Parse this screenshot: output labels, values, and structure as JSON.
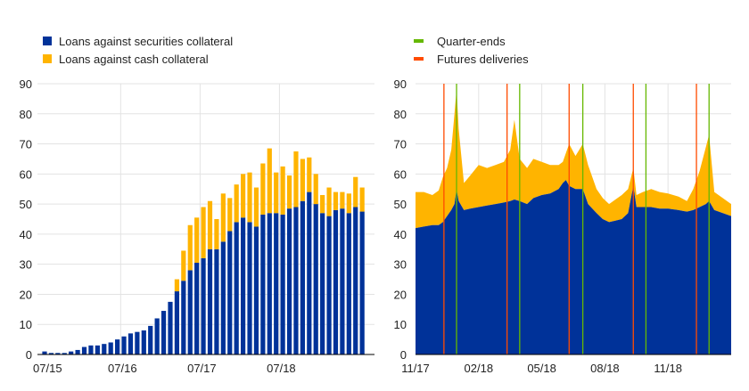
{
  "chart_data": [
    {
      "type": "bar",
      "stacked": true,
      "legend": [
        {
          "label": "Loans against securities collateral",
          "color": "#003299"
        },
        {
          "label": "Loans against cash collateral",
          "color": "#ffb400"
        }
      ],
      "ylim": [
        0,
        90
      ],
      "yticks": [
        "0",
        "10",
        "20",
        "30",
        "40",
        "50",
        "60",
        "70",
        "80",
        "90"
      ],
      "xticks": [
        {
          "label": "07/15",
          "index": 0
        },
        {
          "label": "07/16",
          "index": 12
        },
        {
          "label": "07/17",
          "index": 24
        },
        {
          "label": "07/18",
          "index": 36
        }
      ],
      "grid": true,
      "series": [
        {
          "name": "Loans against securities collateral",
          "color": "#003299",
          "values": [
            1,
            0.5,
            0.5,
            0.5,
            1,
            1.5,
            2.5,
            3,
            3,
            3.5,
            4,
            5,
            6,
            7,
            7.5,
            8,
            9.5,
            12,
            14.5,
            17.5,
            21,
            24.5,
            28,
            30.5,
            32,
            35,
            35,
            37.5,
            41,
            44,
            45.5,
            44,
            42.5,
            46.5,
            47,
            47,
            46.5,
            48.5,
            49,
            51,
            54,
            50,
            47,
            46,
            48,
            48.5,
            47,
            49,
            47.5
          ]
        },
        {
          "name": "Loans against cash collateral",
          "color": "#ffb400",
          "values": [
            0,
            0,
            0,
            0,
            0,
            0,
            0,
            0,
            0,
            0,
            0,
            0,
            0,
            0,
            0,
            0,
            0,
            0,
            0,
            0,
            4,
            10,
            15,
            15,
            17,
            16,
            10,
            16,
            11,
            12.5,
            14.5,
            16.5,
            13,
            17,
            21.5,
            13.5,
            16,
            11,
            18.5,
            14,
            11.5,
            10,
            6,
            9.5,
            6,
            5.5,
            6.5,
            10,
            8
          ]
        }
      ]
    },
    {
      "type": "area",
      "stacked": true,
      "legend": [
        {
          "label": "Quarter-ends",
          "color": "#65b800"
        },
        {
          "label": "Futures deliveries",
          "color": "#ff4b00"
        }
      ],
      "ylim": [
        0,
        90
      ],
      "yticks": [
        "0",
        "10",
        "20",
        "30",
        "40",
        "50",
        "60",
        "70",
        "80",
        "90"
      ],
      "xlim": [
        0,
        15
      ],
      "xticks": [
        {
          "label": "11/17",
          "x": 0
        },
        {
          "label": "02/18",
          "x": 3
        },
        {
          "label": "05/18",
          "x": 6
        },
        {
          "label": "08/18",
          "x": 9
        },
        {
          "label": "11/18",
          "x": 12
        }
      ],
      "grid": true,
      "quarter_ends": [
        1.95,
        4.95,
        7.95,
        10.95,
        13.95
      ],
      "futures_deliveries": [
        1.35,
        4.35,
        7.3,
        10.35,
        13.35
      ],
      "series": [
        {
          "name": "Loans against securities collateral",
          "color": "#003299",
          "points": [
            [
              0,
              42
            ],
            [
              0.4,
              42.5
            ],
            [
              0.8,
              43
            ],
            [
              1.1,
              43
            ],
            [
              1.3,
              44
            ],
            [
              1.5,
              46
            ],
            [
              1.7,
              48
            ],
            [
              1.85,
              50
            ],
            [
              1.95,
              55
            ],
            [
              2.05,
              51
            ],
            [
              2.3,
              48
            ],
            [
              2.6,
              48.5
            ],
            [
              3,
              49
            ],
            [
              3.4,
              49.5
            ],
            [
              3.8,
              50
            ],
            [
              4.2,
              50.5
            ],
            [
              4.5,
              51
            ],
            [
              4.7,
              51.5
            ],
            [
              4.95,
              51
            ],
            [
              5.3,
              50
            ],
            [
              5.6,
              52
            ],
            [
              6,
              53
            ],
            [
              6.4,
              53.5
            ],
            [
              6.8,
              55
            ],
            [
              7,
              57
            ],
            [
              7.15,
              58
            ],
            [
              7.3,
              56
            ],
            [
              7.6,
              55
            ],
            [
              7.95,
              55
            ],
            [
              8.2,
              50
            ],
            [
              8.6,
              47
            ],
            [
              8.9,
              45
            ],
            [
              9.2,
              44
            ],
            [
              9.5,
              44.5
            ],
            [
              9.8,
              45
            ],
            [
              10.1,
              47
            ],
            [
              10.35,
              56
            ],
            [
              10.5,
              49
            ],
            [
              10.8,
              49
            ],
            [
              11.2,
              49
            ],
            [
              11.6,
              48.5
            ],
            [
              12,
              48.5
            ],
            [
              12.5,
              48
            ],
            [
              12.9,
              47.5
            ],
            [
              13.2,
              48
            ],
            [
              13.5,
              49
            ],
            [
              13.8,
              50
            ],
            [
              13.95,
              51
            ],
            [
              14.2,
              48
            ],
            [
              14.6,
              47
            ],
            [
              15,
              46
            ]
          ]
        },
        {
          "name": "Loans against cash collateral",
          "color": "#ffb400",
          "points": [
            [
              0,
              12
            ],
            [
              0.4,
              11.5
            ],
            [
              0.8,
              10
            ],
            [
              1.1,
              11.5
            ],
            [
              1.3,
              15
            ],
            [
              1.5,
              16
            ],
            [
              1.7,
              20
            ],
            [
              1.85,
              30
            ],
            [
              1.95,
              33
            ],
            [
              2.05,
              24
            ],
            [
              2.3,
              9
            ],
            [
              2.6,
              11
            ],
            [
              3,
              14
            ],
            [
              3.4,
              12.5
            ],
            [
              3.8,
              13
            ],
            [
              4.2,
              13.5
            ],
            [
              4.5,
              17
            ],
            [
              4.7,
              26.5
            ],
            [
              4.95,
              14
            ],
            [
              5.3,
              12
            ],
            [
              5.6,
              13
            ],
            [
              6,
              11
            ],
            [
              6.4,
              9.5
            ],
            [
              6.8,
              8
            ],
            [
              7,
              7
            ],
            [
              7.15,
              9
            ],
            [
              7.3,
              14
            ],
            [
              7.6,
              11
            ],
            [
              7.95,
              15
            ],
            [
              8.2,
              13
            ],
            [
              8.6,
              8
            ],
            [
              8.9,
              7
            ],
            [
              9.2,
              6
            ],
            [
              9.5,
              7
            ],
            [
              9.8,
              8
            ],
            [
              10.1,
              8
            ],
            [
              10.35,
              6
            ],
            [
              10.5,
              4
            ],
            [
              10.8,
              5
            ],
            [
              11.2,
              6
            ],
            [
              11.6,
              5.5
            ],
            [
              12,
              5
            ],
            [
              12.5,
              4.5
            ],
            [
              12.9,
              3.5
            ],
            [
              13.2,
              7
            ],
            [
              13.5,
              12
            ],
            [
              13.8,
              19
            ],
            [
              13.95,
              22
            ],
            [
              14.2,
              6
            ],
            [
              14.6,
              5
            ],
            [
              15,
              4
            ]
          ]
        }
      ]
    }
  ]
}
